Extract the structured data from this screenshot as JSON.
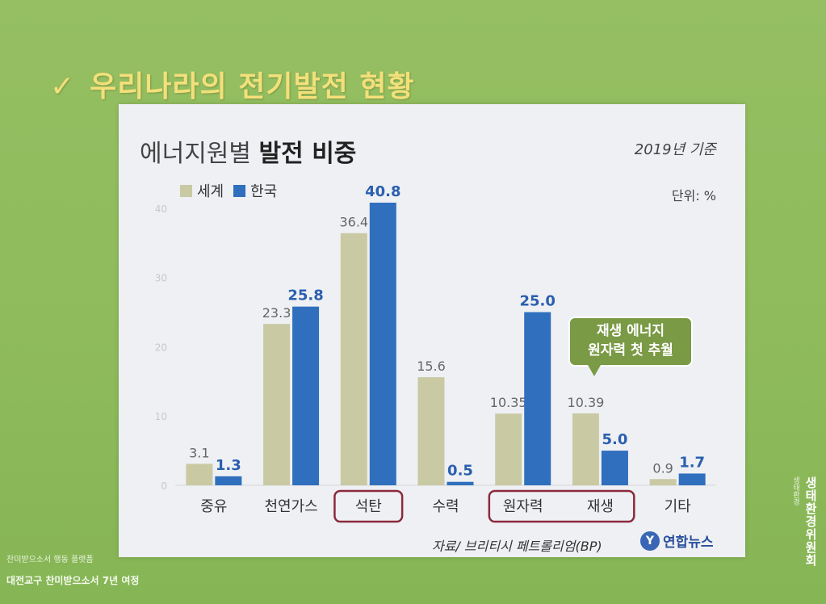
{
  "slide": {
    "check": "✓",
    "title": "우리나라의 전기발전 현황",
    "bottom_line1": "찬미받으소서 행동 플랫폼",
    "bottom_line2": "대전교구 찬미받으소서 7년 여정",
    "side_logo_small": "생태환경",
    "side_logo": "생태환경위원회"
  },
  "card": {
    "title_light": "에너지원별 ",
    "title_bold": "발전 비중",
    "basis": "2019년 기준",
    "unit": "단위: %",
    "source": "자료/ 브리티시 페트롤리엄(BP)",
    "brand": "연합뉴스",
    "brand_logo": "Y",
    "callout_line1": "재생 에너지",
    "callout_line2": "원자력 첫 추월"
  },
  "colors": {
    "world": "#c9caa3",
    "korea": "#2f6fbd",
    "highlight_box": "#8c2a3c"
  },
  "chart_data": {
    "type": "bar",
    "title": "에너지원별 발전 비중",
    "categories": [
      "중유",
      "천연가스",
      "석탄",
      "수력",
      "원자력",
      "재생",
      "기타"
    ],
    "series": [
      {
        "name": "세계",
        "values": [
          3.1,
          23.3,
          36.4,
          15.6,
          10.35,
          10.39,
          0.9
        ],
        "labels": [
          "3.1",
          "23.3",
          "36.4",
          "15.6",
          "10.35",
          "10.39",
          "0.9"
        ]
      },
      {
        "name": "한국",
        "values": [
          1.3,
          25.8,
          40.8,
          0.5,
          25.0,
          5.0,
          1.7
        ],
        "labels": [
          "1.3",
          "25.8",
          "40.8",
          "0.5",
          "25.0",
          "5.0",
          "1.7"
        ]
      }
    ],
    "yticks": [
      0,
      10,
      20,
      30,
      40
    ],
    "ylim": [
      0,
      40.8
    ],
    "ylabel": "",
    "xlabel": "",
    "legend": "top-left",
    "highlighted_categories": [
      [
        "석탄"
      ],
      [
        "원자력",
        "재생"
      ]
    ]
  }
}
